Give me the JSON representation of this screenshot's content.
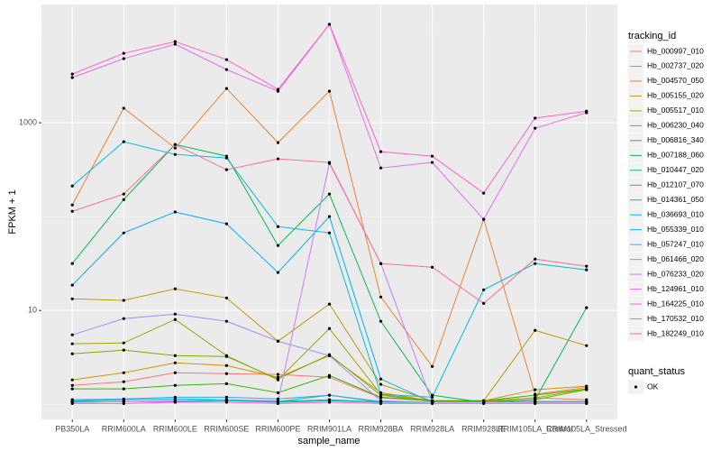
{
  "chart_data": {
    "type": "line",
    "log_y": true,
    "grid": true,
    "x_label": "sample_name",
    "y_label": "FPKM + 1",
    "legend_title": "tracking_id",
    "legend_position": "right",
    "point_legend_title": "quant_status",
    "point_legend_label": "OK",
    "point_color": "#000000",
    "categories": [
      "PB350LA",
      "RRIM600LA",
      "RRIM600LE",
      "RRIM600SE",
      "RRIM600PE",
      "RRIM901LA",
      "RRIM928BA",
      "RRIM928LA",
      "RRIM928LE",
      "RRIM105LA_Control",
      "RRIM105LA_Stressed"
    ],
    "ylim": [
      0.69,
      18200
    ],
    "yticks": [
      10,
      1000
    ],
    "series": [
      {
        "name": "Hb_000997_010",
        "color": "#F8766D",
        "values": [
          1.59,
          1.74,
          2.17,
          2.12,
          2.08,
          1.94,
          1.17,
          1.09,
          1.09,
          1.17,
          1.12
        ]
      },
      {
        "name": "Hb_002737_020",
        "color": "#EA8331",
        "values": [
          133,
          1430,
          538,
          2320,
          614,
          2170,
          13.9,
          2.53,
          93.5,
          1.28,
          1.52
        ]
      },
      {
        "name": "Hb_004570_050",
        "color": "#D89000",
        "values": [
          1.82,
          2.17,
          2.77,
          2.59,
          1.94,
          3.3,
          1.33,
          1.09,
          1.09,
          1.43,
          1.56
        ]
      },
      {
        "name": "Hb_005155_020",
        "color": "#C09B00",
        "values": [
          13.3,
          12.8,
          17.0,
          13.6,
          4.71,
          11.7,
          1.63,
          1.09,
          1.09,
          6.14,
          4.22
        ]
      },
      {
        "name": "Hb_005517_010",
        "color": "#A3A500",
        "values": [
          4.41,
          4.51,
          8.01,
          3.3,
          1.82,
          6.42,
          1.28,
          1.09,
          1.09,
          1.17,
          1.46
        ]
      },
      {
        "name": "Hb_006230_040",
        "color": "#7CAE00",
        "values": [
          3.45,
          3.78,
          3.3,
          3.23,
          1.86,
          3.38,
          1.25,
          1.07,
          1.07,
          1.12,
          1.43
        ]
      },
      {
        "name": "Hb_006816_340",
        "color": "#39B600",
        "values": [
          1.46,
          1.46,
          1.59,
          1.66,
          1.33,
          2.03,
          1.19,
          1.09,
          1.09,
          1.25,
          1.46
        ]
      },
      {
        "name": "Hb_007188_060",
        "color": "#00BB4E",
        "values": [
          31.6,
          152,
          587,
          441,
          49.2,
          174,
          7.67,
          1.25,
          1.05,
          1.12,
          10.7
        ]
      },
      {
        "name": "Hb_010447_020",
        "color": "#00BF7D",
        "values": [
          1.07,
          1.07,
          1.09,
          1.09,
          1.07,
          1.12,
          1.05,
          1.05,
          1.05,
          1.07,
          1.07
        ]
      },
      {
        "name": "Hb_012107_070",
        "color": "#00C1A3",
        "values": [
          1.05,
          1.07,
          1.07,
          1.09,
          1.05,
          1.09,
          1.05,
          1.05,
          1.05,
          1.05,
          1.05
        ]
      },
      {
        "name": "Hb_014361_050",
        "color": "#00BFC4",
        "values": [
          1.09,
          1.12,
          1.14,
          1.12,
          1.07,
          1.25,
          1.05,
          1.05,
          1.05,
          1.05,
          1.05
        ]
      },
      {
        "name": "Hb_036693_010",
        "color": "#00BAE0",
        "values": [
          212,
          628,
          460,
          422,
          78.3,
          67.1,
          1.28,
          1.19,
          16.6,
          31.6,
          27.1
        ]
      },
      {
        "name": "Hb_055339_010",
        "color": "#00B0F6",
        "values": [
          18.6,
          67.1,
          112,
          83.8,
          25.4,
          100,
          1.86,
          1.05,
          1.05,
          1.05,
          1.05
        ]
      },
      {
        "name": "Hb_057247_010",
        "color": "#35A2FF",
        "values": [
          1.12,
          1.14,
          1.19,
          1.19,
          1.14,
          1.25,
          1.07,
          1.05,
          1.05,
          1.05,
          1.05
        ]
      },
      {
        "name": "Hb_061466_020",
        "color": "#9590FF",
        "values": [
          5.5,
          8.19,
          9.15,
          7.67,
          4.71,
          3.3,
          1.09,
          1.05,
          1.05,
          1.05,
          1.05
        ]
      },
      {
        "name": "Hb_076233_020",
        "color": "#C77CFF",
        "values": [
          1.05,
          1.07,
          1.09,
          1.12,
          1.09,
          369,
          31.6,
          1.05,
          1.05,
          1.05,
          1.05
        ]
      },
      {
        "name": "Hb_124961_010",
        "color": "#E76BF3",
        "values": [
          3030,
          4820,
          6870,
          3690,
          2170,
          11200,
          330,
          378,
          93.5,
          875,
          1280
        ]
      },
      {
        "name": "Hb_164225_010",
        "color": "#FA62DB",
        "values": [
          1.02,
          1.02,
          1.05,
          1.05,
          1.02,
          1.05,
          1.02,
          1.02,
          1.02,
          1.02,
          1.02
        ]
      },
      {
        "name": "Hb_170532_010",
        "color": "#FF62BC",
        "values": [
          3300,
          5500,
          7330,
          4710,
          2270,
          11200,
          492,
          441,
          178,
          1120,
          1330
        ]
      },
      {
        "name": "Hb_182249_010",
        "color": "#FF6C91",
        "values": [
          114,
          174,
          587,
          316,
          412,
          378,
          31.6,
          28.9,
          11.9,
          35.3,
          29.6
        ]
      }
    ]
  }
}
